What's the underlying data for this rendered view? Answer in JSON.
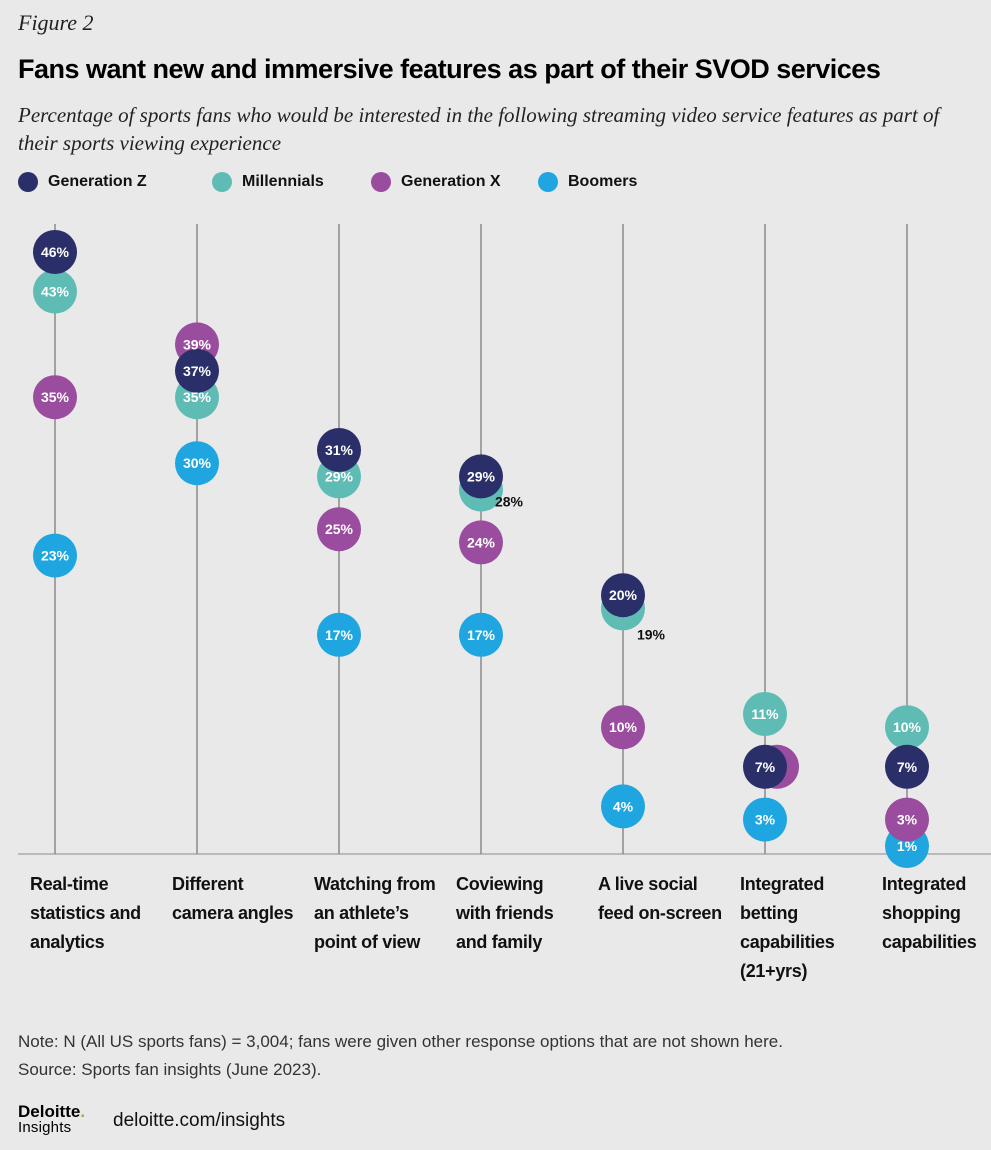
{
  "figure_label": "Figure 2",
  "colors": {
    "gen_z": "#2b2f69",
    "millennials": "#5fbcb5",
    "gen_x": "#9a4c9e",
    "boomers": "#1fa6e0",
    "background": "#e9e9e9",
    "axis_line": "#8a8a8a"
  },
  "legend": [
    {
      "name": "Generation Z",
      "color": "#2b2f69"
    },
    {
      "name": "Millennials",
      "color": "#5fbcb5"
    },
    {
      "name": "Generation X",
      "color": "#9a4c9e"
    },
    {
      "name": "Boomers",
      "color": "#1fa6e0"
    }
  ],
  "chart_data": {
    "type": "scatter",
    "title": "Fans want new and immersive features as part of their SVOD services",
    "subtitle": "Percentage of sports fans who would be interested in the following streaming video service features as part of their sports viewing experience",
    "ylim": [
      0,
      48
    ],
    "unit": "%",
    "categories": [
      [
        "Real-time",
        "statistics and",
        "analytics"
      ],
      [
        "Different",
        "camera angles"
      ],
      [
        "Watching from",
        "an athlete’s",
        "point of view"
      ],
      [
        "Coviewing",
        "with friends",
        "and family"
      ],
      [
        "A live social",
        "feed on-screen"
      ],
      [
        "Integrated",
        "betting",
        "capabilities",
        "(21+yrs)"
      ],
      [
        "Integrated",
        "shopping",
        "capabilities"
      ]
    ],
    "series": [
      {
        "name": "Boomers",
        "key": "boomers",
        "values": [
          23,
          30,
          17,
          17,
          4,
          3,
          1
        ]
      },
      {
        "name": "Generation X",
        "key": "gen_x",
        "values": [
          35,
          39,
          25,
          24,
          10,
          7,
          3
        ]
      },
      {
        "name": "Millennials",
        "key": "millennials",
        "values": [
          43,
          35,
          29,
          28,
          19,
          11,
          10
        ]
      },
      {
        "name": "Generation Z",
        "key": "gen_z",
        "values": [
          46,
          37,
          31,
          29,
          20,
          7,
          7
        ]
      }
    ]
  },
  "footnote": {
    "note": "Note: N (All US sports fans) = 3,004; fans were given other response options that are not shown here.",
    "source": "Source: Sports fan insights (June 2023)."
  },
  "brand": {
    "name": "Deloitte",
    "dot": ".",
    "sub": "Insights",
    "site": "deloitte.com/insights"
  }
}
